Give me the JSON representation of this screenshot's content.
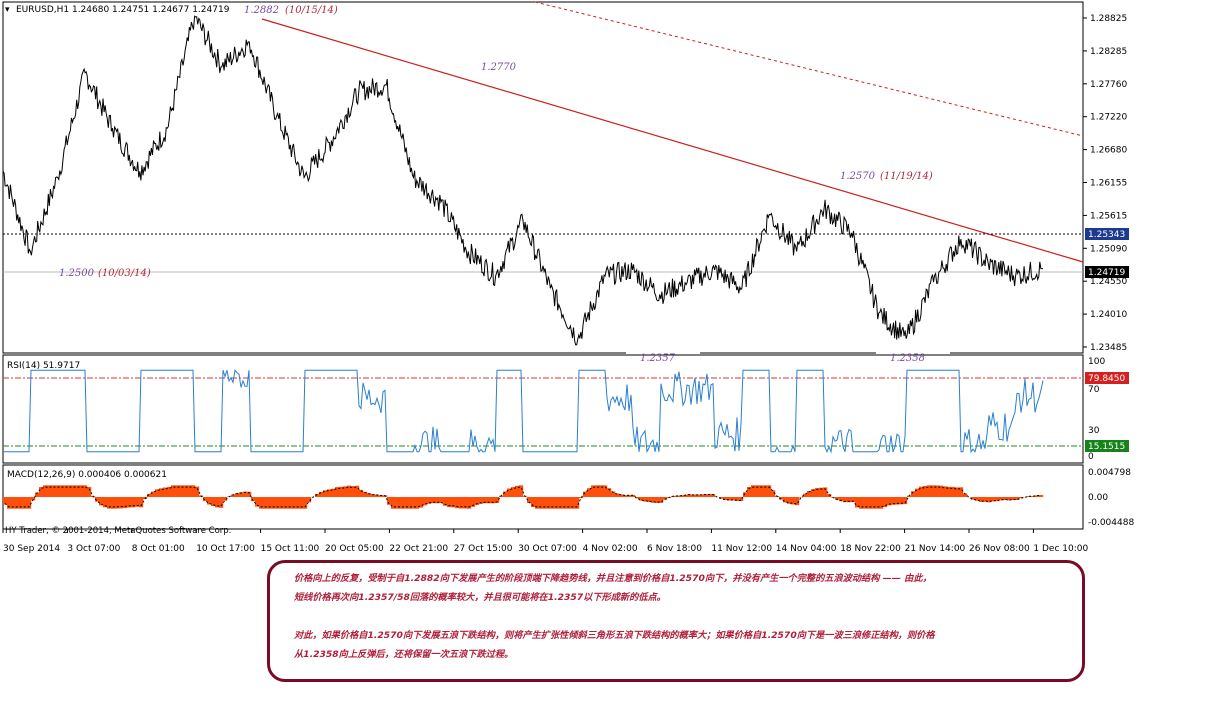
{
  "main_chart": {
    "header": "EURUSD,H1  1.24680 1.24751 1.24677 1.24719",
    "price_ticks": [
      "1.28825",
      "1.28285",
      "1.27760",
      "1.27220",
      "1.26680",
      "1.26155",
      "1.25615",
      "1.25090",
      "1.24550",
      "1.24010",
      "1.23485"
    ],
    "current_price": "1.24719",
    "level_price": "1.25343",
    "annotations": [
      {
        "value": "1.2882",
        "date": "(10/15/14)"
      },
      {
        "value": "1.2770"
      },
      {
        "value": "1.2570",
        "date": "(11/19/14)"
      },
      {
        "value": "1.2500",
        "date": "(10/03/14)"
      },
      {
        "value": "1.2357"
      },
      {
        "value": "1.2358"
      }
    ]
  },
  "rsi": {
    "header": "RSI(14) 51.9717",
    "ticks": [
      "100",
      "70",
      "30",
      "0"
    ],
    "upper": "79.8450",
    "lower": "15.1515"
  },
  "macd": {
    "header": "MACD(12,26,9) 0.000406 0.000621",
    "ticks": [
      "0.004798",
      "0.00",
      "-0.004488"
    ],
    "copyright": "HY Trader, © 2001-2014, MetaQuotes Software Corp."
  },
  "time_axis": [
    "30 Sep 2014",
    "3 Oct 07:00",
    "8 Oct 01:00",
    "10 Oct 17:00",
    "15 Oct 11:00",
    "20 Oct 05:00",
    "22 Oct 21:00",
    "27 Oct 15:00",
    "30 Oct 07:00",
    "4 Nov 02:00",
    "6 Nov 18:00",
    "11 Nov 12:00",
    "14 Nov 04:00",
    "18 Nov 22:00",
    "21 Nov 14:00",
    "26 Nov 08:00",
    "1 Dec 10:00"
  ],
  "note": {
    "line1": "价格向上的反复，受制于自1.2882向下发展产生的阶段顶端下降趋势线，并且注意到价格自1.2570向下，并没有产生一个完整的五浪波动结构 —— 由此，",
    "line2": "短线价格再次向1.2357/58回落的概率较大，并且很可能将在1.2357以下形成新的低点。",
    "line3": "对此，如果价格自1.2570向下发展五浪下跌结构，则将产生扩张性倾斜三角形五浪下跌结构的概率大；如果价格自1.2570向下是一波三浪修正结构，则价格",
    "line4": "从1.2358向上反弹后，还将保留一次五浪下跌过程。"
  },
  "chart_data": {
    "type": "line",
    "title": "EURUSD,H1",
    "series": [
      {
        "name": "EURUSD",
        "x": [
          "30 Sep",
          "3 Oct",
          "6 Oct",
          "8 Oct",
          "9 Oct",
          "10 Oct",
          "14 Oct",
          "15 Oct",
          "16 Oct",
          "20 Oct",
          "21 Oct",
          "22 Oct",
          "24 Oct",
          "27 Oct",
          "28 Oct",
          "29 Oct",
          "30 Oct",
          "31 Oct",
          "3 Nov",
          "4 Nov",
          "5 Nov",
          "6 Nov",
          "7 Nov",
          "10 Nov",
          "11 Nov",
          "12 Nov",
          "13 Nov",
          "14 Nov",
          "17 Nov",
          "18 Nov",
          "19 Nov",
          "20 Nov",
          "21 Nov",
          "24 Nov",
          "25 Nov",
          "26 Nov",
          "27 Nov",
          "28 Nov",
          "1 Dec"
        ],
        "y": [
          1.263,
          1.25,
          1.262,
          1.279,
          1.27,
          1.263,
          1.27,
          1.2882,
          1.28,
          1.284,
          1.272,
          1.262,
          1.268,
          1.276,
          1.277,
          1.262,
          1.258,
          1.25,
          1.246,
          1.255,
          1.244,
          1.2357,
          1.246,
          1.247,
          1.243,
          1.245,
          1.247,
          1.244,
          1.256,
          1.25,
          1.257,
          1.253,
          1.24,
          1.2358,
          1.245,
          1.252,
          1.248,
          1.246,
          1.2472
        ]
      }
    ],
    "ylim": [
      1.2335,
      1.2905
    ],
    "annotations": [
      "1.2882 (10/15/14)",
      "1.2770",
      "1.2570 (11/19/14)",
      "1.2500 (10/03/14)",
      "1.2357",
      "1.2358"
    ],
    "rsi": {
      "name": "RSI(14)",
      "last": 51.9717,
      "upper": 79.845,
      "lower": 15.1515,
      "ylim": [
        0,
        100
      ]
    },
    "macd": {
      "name": "MACD(12,26,9)",
      "main": 0.000406,
      "signal": 0.000621,
      "ylim": [
        -0.004488,
        0.004798
      ]
    }
  }
}
